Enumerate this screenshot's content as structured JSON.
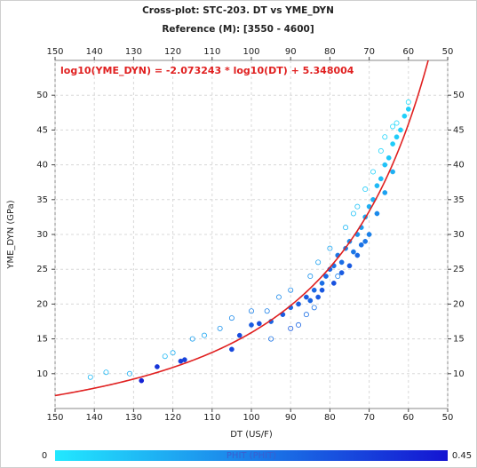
{
  "chart_data": {
    "type": "scatter",
    "title": "Cross-plot: STC-203. DT vs YME_DYN",
    "subtitle": "Reference (M): [3550 - 4600]",
    "x_label": "DT (US/F)",
    "y_label": "YME_DYN (GPa)",
    "annotation": "log10(YME_DYN) = -2.073243 * log10(DT) + 5.348004",
    "fit": {
      "slope": -2.073243,
      "intercept": 5.348004,
      "color": "#e02020"
    },
    "xlim": [
      150,
      50
    ],
    "xticks": [
      150,
      140,
      130,
      120,
      110,
      100,
      90,
      80,
      70,
      60,
      50
    ],
    "ylim": [
      5,
      55
    ],
    "yticks": [
      10,
      15,
      20,
      25,
      30,
      35,
      40,
      45,
      50
    ],
    "grid": true,
    "colorbar": {
      "label": "PHIT (PHIT)",
      "min": 0,
      "max": 0.45,
      "colors": [
        "#22e8ff",
        "#1414d2"
      ]
    },
    "series": [
      {
        "filled": true,
        "x": [
          128,
          124,
          118,
          117,
          105,
          103,
          100,
          98,
          95,
          92,
          90,
          88,
          86,
          85,
          84,
          83,
          82,
          82,
          81,
          80,
          79,
          79,
          78,
          77,
          77,
          76,
          75,
          75,
          74,
          73,
          73,
          72,
          72,
          71,
          71,
          70,
          70,
          69,
          68,
          68,
          67,
          66,
          66,
          65,
          64,
          64,
          63,
          62,
          61,
          60
        ],
        "values": [
          9,
          11,
          11.8,
          12,
          13.5,
          15.5,
          17,
          17.2,
          17.5,
          18.5,
          19.5,
          20,
          21,
          20.5,
          22,
          21,
          23,
          22,
          24,
          25,
          25.5,
          23,
          27,
          26,
          24.5,
          28,
          29,
          25.5,
          27.5,
          30,
          27,
          31,
          28.5,
          32.5,
          29,
          34,
          30,
          35,
          37,
          33,
          38,
          40,
          36,
          41,
          43,
          39,
          44,
          45,
          47,
          48
        ],
        "phit": [
          0.42,
          0.38,
          0.36,
          0.35,
          0.34,
          0.33,
          0.3,
          0.32,
          0.28,
          0.3,
          0.27,
          0.29,
          0.3,
          0.28,
          0.27,
          0.3,
          0.26,
          0.31,
          0.27,
          0.28,
          0.25,
          0.32,
          0.24,
          0.26,
          0.3,
          0.22,
          0.2,
          0.3,
          0.24,
          0.18,
          0.27,
          0.16,
          0.25,
          0.14,
          0.24,
          0.12,
          0.22,
          0.12,
          0.1,
          0.2,
          0.09,
          0.08,
          0.15,
          0.07,
          0.06,
          0.12,
          0.06,
          0.05,
          0.05,
          0.05
        ]
      },
      {
        "filled": false,
        "x": [
          141,
          137,
          131,
          122,
          120,
          115,
          112,
          108,
          105,
          100,
          96,
          95,
          93,
          90,
          90,
          88,
          86,
          85,
          84,
          83,
          80,
          78,
          76,
          74,
          73,
          71,
          69,
          67,
          66,
          64,
          63,
          60
        ],
        "values": [
          9.5,
          10.2,
          10,
          12.5,
          13,
          15,
          15.5,
          16.5,
          18,
          19,
          19,
          15,
          21,
          22,
          16.5,
          17,
          18.5,
          24,
          19.5,
          26,
          28,
          24,
          31,
          33,
          34,
          36.5,
          39,
          42,
          44,
          45.5,
          46,
          49
        ],
        "phit": [
          0.1,
          0.1,
          0.12,
          0.1,
          0.12,
          0.15,
          0.14,
          0.18,
          0.2,
          0.22,
          0.22,
          0.25,
          0.2,
          0.2,
          0.3,
          0.28,
          0.26,
          0.18,
          0.25,
          0.15,
          0.14,
          0.22,
          0.1,
          0.08,
          0.08,
          0.06,
          0.05,
          0.04,
          0.04,
          0.03,
          0.03,
          0.02
        ]
      }
    ]
  }
}
